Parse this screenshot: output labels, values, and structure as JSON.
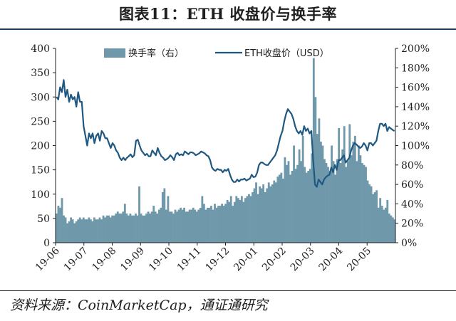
{
  "title": "图表11：ETH 收盘价与换手率",
  "source": "资料来源：CoinMarketCap，通证通研究",
  "colors": {
    "line": "#1f5880",
    "bars": "#6f98aa",
    "axis": "#1f1f1f",
    "title_rule": "#1f3f5f"
  },
  "chart_data": {
    "type": "bar+line",
    "x_tick_labels": [
      "19-06",
      "19-07",
      "19-08",
      "19-09",
      "19-10",
      "19-11",
      "19-12",
      "20-01",
      "20-02",
      "20-03",
      "20-04",
      "20-05"
    ],
    "y_left": {
      "ticks": [
        "0",
        "50",
        "100",
        "150",
        "200",
        "250",
        "300",
        "350",
        "400"
      ],
      "range": [
        0,
        400
      ]
    },
    "y_right": {
      "ticks": [
        "0%",
        "20%",
        "40%",
        "60%",
        "80%",
        "100%",
        "120%",
        "140%",
        "160%",
        "180%",
        "200%"
      ],
      "range": [
        0,
        200
      ]
    },
    "legend": {
      "placement": "top-center"
    },
    "series": [
      {
        "name": "换手率（右）",
        "type": "bar",
        "axis": "right",
        "values": [
          30,
          38,
          36,
          46,
          28,
          26,
          20,
          22,
          26,
          24,
          20,
          22,
          24,
          26,
          24,
          26,
          24,
          24,
          26,
          24,
          22,
          26,
          24,
          24,
          26,
          24,
          28,
          26,
          28,
          28,
          26,
          28,
          28,
          30,
          32,
          30,
          30,
          32,
          40,
          30,
          28,
          30,
          28,
          28,
          30,
          28,
          58,
          30,
          28,
          28,
          30,
          32,
          30,
          32,
          38,
          32,
          30,
          34,
          36,
          52,
          56,
          34,
          48,
          32,
          32,
          30,
          34,
          32,
          34,
          36,
          34,
          36,
          32,
          32,
          34,
          34,
          36,
          34,
          32,
          34,
          36,
          48,
          40,
          34,
          36,
          36,
          38,
          34,
          40,
          36,
          38,
          38,
          40,
          38,
          40,
          44,
          42,
          48,
          38,
          42,
          48,
          46,
          44,
          48,
          42,
          46,
          48,
          50,
          48,
          52,
          56,
          62,
          50,
          58,
          56,
          60,
          52,
          56,
          62,
          58,
          60,
          64,
          62,
          68,
          70,
          72,
          66,
          88,
          80,
          84,
          70,
          74,
          100,
          76,
          80,
          96,
          84,
          110,
          78,
          72,
          74,
          76,
          92,
          190,
          150,
          112,
          128,
          104,
          100,
          86,
          82,
          78,
          74,
          100,
          84,
          70,
          86,
          118,
          82,
          96,
          120,
          78,
          84,
          122,
          90,
          104,
          110,
          84,
          100,
          90,
          82,
          80,
          78,
          64,
          60,
          58,
          50,
          52,
          54,
          36,
          46,
          38,
          34,
          36,
          44,
          30,
          28,
          26,
          24
        ]
      },
      {
        "name": "ETH收盘价（USD）",
        "type": "line",
        "axis": "left",
        "values": [
          300,
          295,
          320,
          310,
          335,
          300,
          315,
          290,
          305,
          295,
          300,
          280,
          310,
          290,
          290,
          240,
          220,
          200,
          225,
          215,
          225,
          205,
          220,
          225,
          210,
          230,
          225,
          215,
          215,
          205,
          195,
          205,
          200,
          190,
          185,
          175,
          170,
          175,
          170,
          175,
          178,
          182,
          176,
          180,
          210,
          212,
          200,
          190,
          185,
          180,
          183,
          178,
          178,
          190,
          185,
          180,
          195,
          185,
          178,
          175,
          170,
          172,
          175,
          180,
          176,
          170,
          182,
          185,
          180,
          182,
          180,
          188,
          185,
          182,
          186,
          186,
          184,
          180,
          182,
          184,
          188,
          186,
          184,
          180,
          178,
          170,
          155,
          150,
          148,
          152,
          150,
          150,
          145,
          150,
          148,
          152,
          140,
          130,
          125,
          125,
          130,
          126,
          130,
          130,
          132,
          128,
          130,
          132,
          140,
          135,
          136,
          144,
          160,
          165,
          165,
          162,
          160,
          160,
          165,
          170,
          175,
          180,
          190,
          205,
          220,
          230,
          250,
          265,
          275,
          270,
          265,
          255,
          240,
          230,
          225,
          230,
          222,
          240,
          230,
          235,
          225,
          230,
          170,
          120,
          115,
          130,
          125,
          120,
          130,
          135,
          138,
          140,
          155,
          145,
          160,
          150,
          170,
          170,
          175,
          180,
          165,
          170,
          175,
          190,
          200,
          205,
          202,
          198,
          195,
          198,
          205,
          200,
          190,
          205,
          205,
          200,
          205,
          210,
          230,
          245,
          245,
          240,
          245,
          230,
          238,
          235,
          232,
          230
        ]
      }
    ]
  }
}
